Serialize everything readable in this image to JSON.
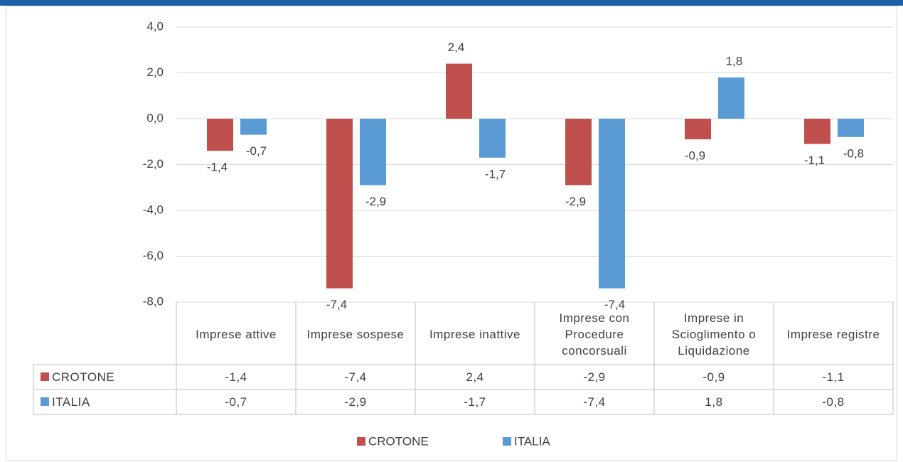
{
  "chart_data": {
    "type": "bar",
    "categories": [
      "Imprese attive",
      "Imprese sospese",
      "Imprese inattive",
      "Imprese con Procedure concorsuali",
      "Imprese in Scioglimento o Liquidazione",
      "Imprese registre"
    ],
    "series": [
      {
        "name": "CROTONE",
        "color": "#c0504d",
        "values": [
          -1.4,
          -7.4,
          2.4,
          -2.9,
          -0.9,
          -1.1
        ],
        "value_labels": [
          "-1,4",
          "-7,4",
          "2,4",
          "-2,9",
          "-0,9",
          "-1,1"
        ]
      },
      {
        "name": "ITALIA",
        "color": "#5b9bd5",
        "values": [
          -0.7,
          -2.9,
          -1.7,
          -7.4,
          1.8,
          -0.8
        ],
        "value_labels": [
          "-0,7",
          "-2,9",
          "-1,7",
          "-7,4",
          "1,8",
          "-0,8"
        ]
      }
    ],
    "ylim": [
      -8,
      4
    ],
    "yticks": [
      {
        "value": -8,
        "label": "-8,0"
      },
      {
        "value": -6,
        "label": "-6,0"
      },
      {
        "value": -4,
        "label": "-4,0"
      },
      {
        "value": -2,
        "label": "-2,0"
      },
      {
        "value": 0,
        "label": "0,0"
      },
      {
        "value": 2,
        "label": "2,0"
      },
      {
        "value": 4,
        "label": "4,0"
      }
    ],
    "grid": true
  }
}
